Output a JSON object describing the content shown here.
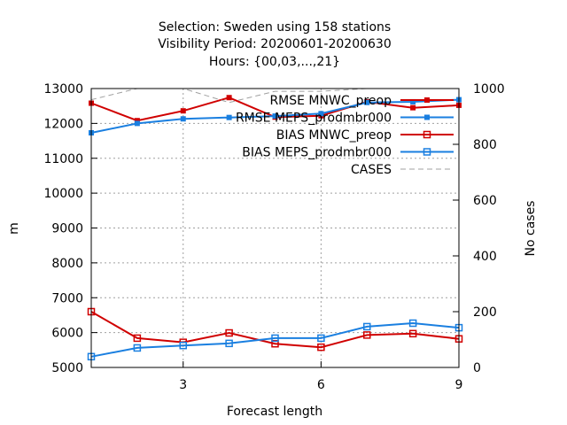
{
  "chart_data": {
    "type": "line",
    "title_lines": [
      "Selection: Sweden using   158 stations",
      "Visibility   Period: 20200601-20200630",
      "Hours: {00,03,...,21}"
    ],
    "xlabel": "Forecast length",
    "ylabel": "m",
    "y2label": "No cases",
    "x": [
      1,
      2,
      3,
      4,
      5,
      6,
      7,
      8,
      9
    ],
    "xlim": [
      1,
      9
    ],
    "xticks": [
      3,
      6,
      9
    ],
    "ylim": [
      5000,
      13000
    ],
    "yticks": [
      5000,
      6000,
      7000,
      8000,
      9000,
      10000,
      11000,
      12000,
      13000
    ],
    "y2lim": [
      0,
      1000
    ],
    "y2ticks": [
      0,
      200,
      400,
      600,
      800,
      1000
    ],
    "grid": true,
    "legend_position": "top-right",
    "series": [
      {
        "name": "RMSE MNWC_preop",
        "axis": "y",
        "color": "#d00000",
        "marker": "filled-square",
        "values": [
          12580,
          12080,
          12360,
          12740,
          12180,
          12220,
          12620,
          12450,
          12520
        ]
      },
      {
        "name": "RMSE MEPS_prodmbr000",
        "axis": "y",
        "color": "#1a7fe0",
        "marker": "filled-square",
        "values": [
          11730,
          12000,
          12130,
          12170,
          12210,
          12280,
          12600,
          12620,
          12680
        ]
      },
      {
        "name": "BIAS MNWC_preop",
        "axis": "y",
        "color": "#d00000",
        "marker": "open-square",
        "values": [
          6600,
          5840,
          5720,
          5990,
          5680,
          5580,
          5930,
          5970,
          5820
        ]
      },
      {
        "name": "BIAS MEPS_prodmbr000",
        "axis": "y",
        "color": "#1a7fe0",
        "marker": "open-square",
        "values": [
          5310,
          5560,
          5630,
          5690,
          5840,
          5840,
          6170,
          6270,
          6140
        ]
      },
      {
        "name": "CASES",
        "axis": "y2",
        "color": "#a0a0a0",
        "dashed": true,
        "values": [
          960,
          1000,
          1000,
          950,
          990,
          990,
          1000,
          1000,
          1000
        ]
      }
    ]
  }
}
